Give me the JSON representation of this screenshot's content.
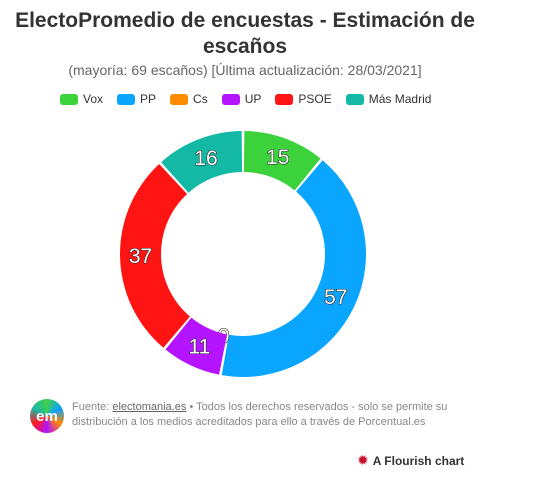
{
  "title_line1": "ElectoPromedio de encuestas - Estimación de",
  "title_line2": "escaños",
  "subtitle": "(mayoría: 69 escaños) [Última actualización: 28/03/2021]",
  "chart_data": {
    "type": "pie",
    "donut": true,
    "title": "ElectoPromedio de encuestas - Estimación de escaños",
    "subtitle": "(mayoría: 69 escaños) [Última actualización: 28/03/2021]",
    "legend_position": "top",
    "labels": [
      "Vox",
      "PP",
      "Cs",
      "UP",
      "PSOE",
      "Más Madrid"
    ],
    "values": [
      15,
      57,
      0,
      11,
      37,
      16
    ],
    "colors": [
      "#3cd23c",
      "#0aa5ff",
      "#ff8c00",
      "#b414ff",
      "#ff1414",
      "#14b9a5"
    ]
  },
  "footer": {
    "logo_text": "em",
    "source_prefix": "Fuente: ",
    "source_link": "electomania.es",
    "source_rest": " • Todos los derechos reservados - solo se permite su",
    "source_line2": "distribución a los medios acreditados para ello a través de Porcentual.es"
  },
  "credit": "A Flourish chart"
}
